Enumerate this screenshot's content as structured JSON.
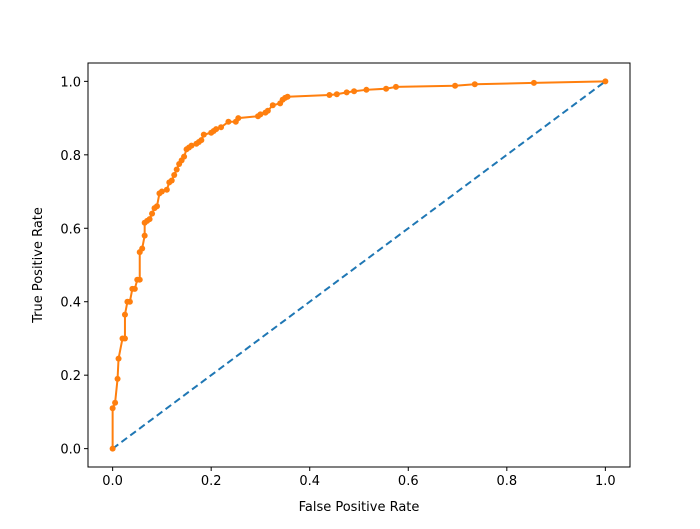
{
  "chart_data": {
    "type": "line",
    "title": "",
    "xlabel": "False Positive Rate",
    "ylabel": "True Positive Rate",
    "xlim": [
      -0.05,
      1.05
    ],
    "ylim": [
      -0.05,
      1.05
    ],
    "xticks": [
      "0.0",
      "0.2",
      "0.4",
      "0.6",
      "0.8",
      "1.0"
    ],
    "yticks": [
      "0.0",
      "0.2",
      "0.4",
      "0.6",
      "0.8",
      "1.0"
    ],
    "grid": false,
    "series": [
      {
        "style": "dashed",
        "color": "#1f77b4",
        "x": [
          0,
          1
        ],
        "y": [
          0,
          1
        ]
      },
      {
        "style": "solid-with-dot-markers",
        "color": "#ff7f0e",
        "x": [
          0,
          0,
          0.005,
          0.01,
          0.012,
          0.02,
          0.025,
          0.025,
          0.03,
          0.035,
          0.04,
          0.045,
          0.05,
          0.055,
          0.055,
          0.06,
          0.065,
          0.065,
          0.07,
          0.075,
          0.08,
          0.085,
          0.09,
          0.095,
          0.1,
          0.11,
          0.115,
          0.12,
          0.125,
          0.13,
          0.135,
          0.14,
          0.145,
          0.15,
          0.155,
          0.16,
          0.17,
          0.175,
          0.18,
          0.185,
          0.2,
          0.205,
          0.21,
          0.22,
          0.235,
          0.25,
          0.255,
          0.295,
          0.3,
          0.31,
          0.315,
          0.325,
          0.34,
          0.345,
          0.35,
          0.355,
          0.44,
          0.455,
          0.475,
          0.49,
          0.515,
          0.555,
          0.575,
          0.695,
          0.735,
          0.855,
          1
        ],
        "y": [
          0,
          0.11,
          0.125,
          0.19,
          0.245,
          0.3,
          0.3,
          0.365,
          0.4,
          0.4,
          0.435,
          0.435,
          0.46,
          0.46,
          0.535,
          0.545,
          0.58,
          0.615,
          0.62,
          0.625,
          0.64,
          0.655,
          0.66,
          0.695,
          0.7,
          0.705,
          0.725,
          0.73,
          0.745,
          0.76,
          0.775,
          0.785,
          0.795,
          0.815,
          0.82,
          0.825,
          0.83,
          0.835,
          0.84,
          0.855,
          0.86,
          0.865,
          0.87,
          0.875,
          0.89,
          0.89,
          0.9,
          0.905,
          0.91,
          0.915,
          0.92,
          0.935,
          0.94,
          0.95,
          0.955,
          0.958,
          0.963,
          0.965,
          0.97,
          0.973,
          0.977,
          0.98,
          0.985,
          0.988,
          0.992,
          0.996,
          1
        ]
      }
    ]
  }
}
